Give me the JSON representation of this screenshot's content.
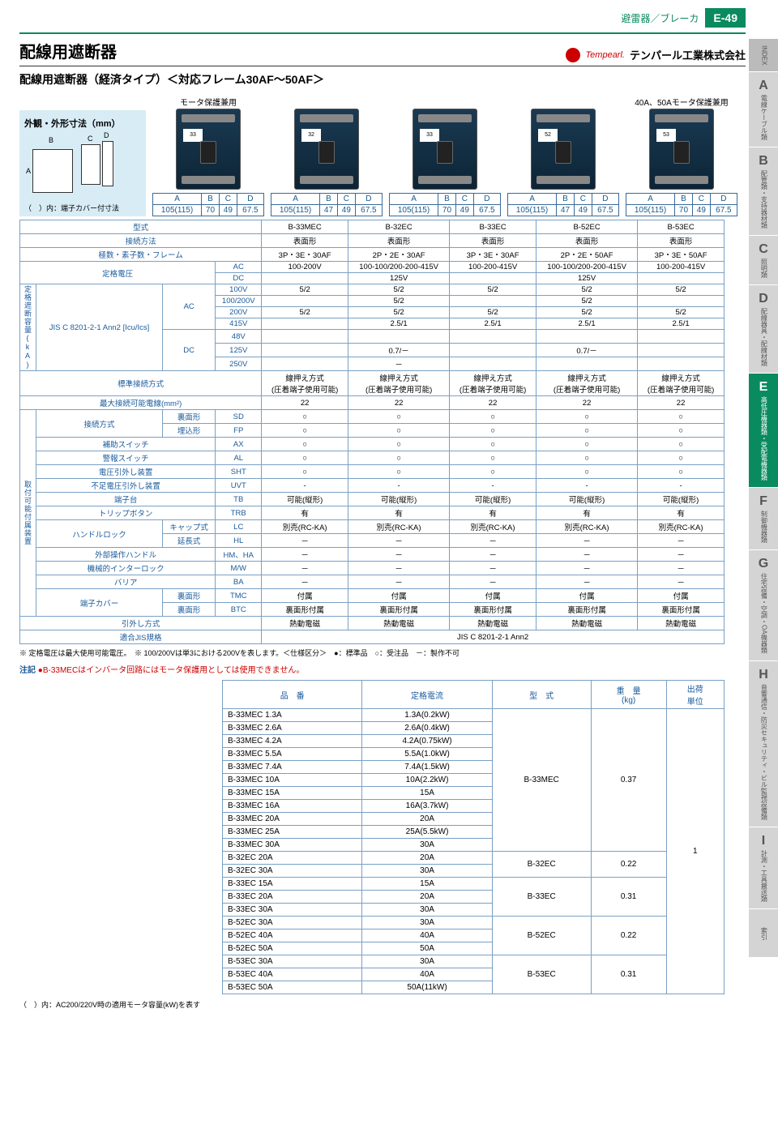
{
  "header": {
    "category": "避雷器／ブレーカ",
    "page_number": "E-49",
    "accent_color": "#0a8a5f"
  },
  "title": "配線用遮断器",
  "brand": {
    "en": "Tempearl.",
    "jp": "テンパール工業株式会社"
  },
  "subtitle": "配線用遮断器（経済タイプ）＜対応フレーム30AF～50AF＞",
  "outline": {
    "title": "外観・外形寸法（mm）",
    "note": "（　）内：端子カバー付寸法",
    "dim_labels": {
      "A": "A",
      "B": "B",
      "C": "C",
      "D": "D"
    }
  },
  "products": [
    {
      "tag": "モータ保護兼用",
      "dims": [
        "105(115)",
        "70",
        "49",
        "67.5"
      ]
    },
    {
      "tag": "",
      "dims": [
        "105(115)",
        "47",
        "49",
        "67.5"
      ]
    },
    {
      "tag": "",
      "dims": [
        "105(115)",
        "70",
        "49",
        "67.5"
      ]
    },
    {
      "tag": "",
      "dims": [
        "105(115)",
        "47",
        "49",
        "67.5"
      ]
    },
    {
      "tag": "40A、50Aモータ保護兼用",
      "dims": [
        "105(115)",
        "70",
        "49",
        "67.5"
      ]
    }
  ],
  "spec": {
    "row_labels": {
      "model": "型式",
      "connection": "接続方法",
      "poles": "極数・素子数・フレーム",
      "rated_voltage": "定格電圧",
      "ac": "AC",
      "dc": "DC",
      "breaking_side": "定格遮断容量(kA)",
      "breaking_std": "JIS C 8201-2-1 Ann2 [Icu/Ics]",
      "v100": "100V",
      "v100_200": "100/200V",
      "v200": "200V",
      "v415": "415V",
      "v48": "48V",
      "v125": "125V",
      "v250": "250V",
      "std_conn": "標準接続方式",
      "max_wire": "最大接続可能電線(mm²)",
      "conn_method": "接続方式",
      "sd": "裏面形",
      "fp": "埋込形",
      "aux": "補助スイッチ",
      "alarm": "警報スイッチ",
      "shunt": "電圧引外し装置",
      "uvt": "不足電圧引外し装置",
      "tb": "端子台",
      "trb": "トリップボタン",
      "handle_lock": "ハンドルロック",
      "cap": "キャップ式",
      "ext": "延長式",
      "ext_handle": "外部操作ハンドル",
      "interlock": "機械的インターロック",
      "barrier": "バリア",
      "term_cover": "端子カバー",
      "tmc": "裏面形",
      "btc": "裏面形",
      "trip": "引外し方式",
      "jis": "適合JIS規格",
      "accessory_side": "取付可能付属装置",
      "codes": {
        "SD": "SD",
        "FP": "FP",
        "AX": "AX",
        "AL": "AL",
        "SHT": "SHT",
        "UVT": "UVT",
        "TB": "TB",
        "TRB": "TRB",
        "LC": "LC",
        "HL": "HL",
        "HM": "HM、HA",
        "MW": "M/W",
        "BA": "BA",
        "TMC": "TMC",
        "BTC": "BTC"
      }
    },
    "models": [
      "B-33MEC",
      "B-32EC",
      "B-33EC",
      "B-52EC",
      "B-53EC"
    ],
    "connection": [
      "表面形",
      "表面形",
      "表面形",
      "表面形",
      "表面形"
    ],
    "poles": [
      "3P・3E・30AF",
      "2P・2E・30AF",
      "3P・3E・30AF",
      "2P・2E・50AF",
      "3P・3E・50AF"
    ],
    "rated_ac": [
      "100-200V",
      "100-100/200-200-415V",
      "100-200-415V",
      "100-100/200-200-415V",
      "100-200-415V"
    ],
    "rated_dc": [
      "",
      "125V",
      "",
      "125V",
      ""
    ],
    "break_ac_100": [
      "5/2",
      "5/2",
      "5/2",
      "5/2",
      "5/2"
    ],
    "break_ac_100_200": [
      "",
      "5/2",
      "",
      "5/2",
      ""
    ],
    "break_ac_200": [
      "5/2",
      "5/2",
      "5/2",
      "5/2",
      "5/2"
    ],
    "break_ac_415": [
      "",
      "2.5/1",
      "2.5/1",
      "2.5/1",
      "2.5/1"
    ],
    "break_dc_48": [
      "",
      "",
      "",
      "",
      ""
    ],
    "break_dc_125": [
      "",
      "0.7/－",
      "",
      "0.7/－",
      ""
    ],
    "break_dc_250": [
      "",
      "－",
      "",
      "",
      ""
    ],
    "std_conn_vals": [
      "線押え方式\n(圧着端子使用可能)",
      "線押え方式\n(圧着端子使用可能)",
      "線押え方式\n(圧着端子使用可能)",
      "線押え方式\n(圧着端子使用可能)",
      "線押え方式\n(圧着端子使用可能)"
    ],
    "max_wire_vals": [
      "22",
      "22",
      "22",
      "22",
      "22"
    ],
    "sd_vals": [
      "○",
      "○",
      "○",
      "○",
      "○"
    ],
    "fp_vals": [
      "○",
      "○",
      "○",
      "○",
      "○"
    ],
    "ax_vals": [
      "○",
      "○",
      "○",
      "○",
      "○"
    ],
    "al_vals": [
      "○",
      "○",
      "○",
      "○",
      "○"
    ],
    "sht_vals": [
      "○",
      "○",
      "○",
      "○",
      "○"
    ],
    "uvt_vals": [
      "-",
      "-",
      "-",
      "-",
      "-"
    ],
    "tb_vals": [
      "可能(縦形)",
      "可能(縦形)",
      "可能(縦形)",
      "可能(縦形)",
      "可能(縦形)"
    ],
    "trb_vals": [
      "有",
      "有",
      "有",
      "有",
      "有"
    ],
    "lc_vals": [
      "別売(RC-KA)",
      "別売(RC-KA)",
      "別売(RC-KA)",
      "別売(RC-KA)",
      "別売(RC-KA)"
    ],
    "hl_vals": [
      "－",
      "－",
      "－",
      "－",
      "－"
    ],
    "hm_vals": [
      "－",
      "－",
      "－",
      "－",
      "－"
    ],
    "mw_vals": [
      "－",
      "－",
      "－",
      "－",
      "－"
    ],
    "ba_vals": [
      "－",
      "－",
      "－",
      "－",
      "－"
    ],
    "tmc_vals": [
      "付属",
      "付属",
      "付属",
      "付属",
      "付属"
    ],
    "btc_vals": [
      "裏面形付属",
      "裏面形付属",
      "裏面形付属",
      "裏面形付属",
      "裏面形付属"
    ],
    "trip_vals": [
      "熱動電磁",
      "熱動電磁",
      "熱動電磁",
      "熱動電磁",
      "熱動電磁"
    ],
    "jis_val": "JIS C 8201-2-1 Ann2"
  },
  "spec_notes": "※ 定格電圧は最大使用可能電圧。　※ 100/200Vは単3における200Vを表します。＜仕様区分＞　●：標準品　○：受注品　－：製作不可",
  "caution": {
    "label": "注記",
    "text": "●B-33MECはインバータ回路にはモータ保護用としては使用できません。"
  },
  "order": {
    "headers": [
      "品　番",
      "定格電流",
      "型　式",
      "重　量\n(kg)",
      "出荷\n単位"
    ],
    "rows": [
      {
        "pn": "B-33MEC 1.3A",
        "cur": "1.3A(0.2kW)",
        "model": "B-33MEC",
        "wt": "0.37",
        "unit": "1",
        "model_span": 11,
        "wt_span": 11,
        "unit_span": 22
      },
      {
        "pn": "B-33MEC 2.6A",
        "cur": "2.6A(0.4kW)"
      },
      {
        "pn": "B-33MEC 4.2A",
        "cur": "4.2A(0.75kW)"
      },
      {
        "pn": "B-33MEC 5.5A",
        "cur": "5.5A(1.0kW)"
      },
      {
        "pn": "B-33MEC 7.4A",
        "cur": "7.4A(1.5kW)"
      },
      {
        "pn": "B-33MEC 10A",
        "cur": "10A(2.2kW)"
      },
      {
        "pn": "B-33MEC 15A",
        "cur": "15A"
      },
      {
        "pn": "B-33MEC 16A",
        "cur": "16A(3.7kW)"
      },
      {
        "pn": "B-33MEC 20A",
        "cur": "20A"
      },
      {
        "pn": "B-33MEC 25A",
        "cur": "25A(5.5kW)"
      },
      {
        "pn": "B-33MEC 30A",
        "cur": "30A"
      },
      {
        "pn": "B-32EC 20A",
        "cur": "20A",
        "model": "B-32EC",
        "wt": "0.22",
        "model_span": 2,
        "wt_span": 2
      },
      {
        "pn": "B-32EC 30A",
        "cur": "30A"
      },
      {
        "pn": "B-33EC 15A",
        "cur": "15A",
        "model": "B-33EC",
        "wt": "0.31",
        "model_span": 3,
        "wt_span": 3
      },
      {
        "pn": "B-33EC 20A",
        "cur": "20A"
      },
      {
        "pn": "B-33EC 30A",
        "cur": "30A"
      },
      {
        "pn": "B-52EC 30A",
        "cur": "30A",
        "model": "B-52EC",
        "wt": "0.22",
        "model_span": 3,
        "wt_span": 3
      },
      {
        "pn": "B-52EC 40A",
        "cur": "40A"
      },
      {
        "pn": "B-52EC 50A",
        "cur": "50A"
      },
      {
        "pn": "B-53EC 30A",
        "cur": "30A",
        "model": "B-53EC",
        "wt": "0.31",
        "model_span": 3,
        "wt_span": 3
      },
      {
        "pn": "B-53EC 40A",
        "cur": "40A"
      },
      {
        "pn": "B-53EC 50A",
        "cur": "50A(11kW)"
      }
    ]
  },
  "footnote": "（　）内：AC200/220V時の適用モータ容量(kW)を表す",
  "side_index": [
    {
      "letter": "",
      "text": "INDEX",
      "head": true
    },
    {
      "letter": "A",
      "text": "電線ケーブル類"
    },
    {
      "letter": "B",
      "text": "配管類・支持器材類"
    },
    {
      "letter": "C",
      "text": "照明類"
    },
    {
      "letter": "D",
      "text": "配線器具・配線材類"
    },
    {
      "letter": "E",
      "text": "高低圧機器類・受配電機器類",
      "active": true
    },
    {
      "letter": "F",
      "text": "制御機器類"
    },
    {
      "letter": "G",
      "text": "住宅設備・空調・OA機器類"
    },
    {
      "letter": "H",
      "text": "音響通信・防災セキュリティ・ビル監視設備類"
    },
    {
      "letter": "I",
      "text": "計測・工具搬送類"
    },
    {
      "letter": "",
      "text": "索引"
    }
  ]
}
